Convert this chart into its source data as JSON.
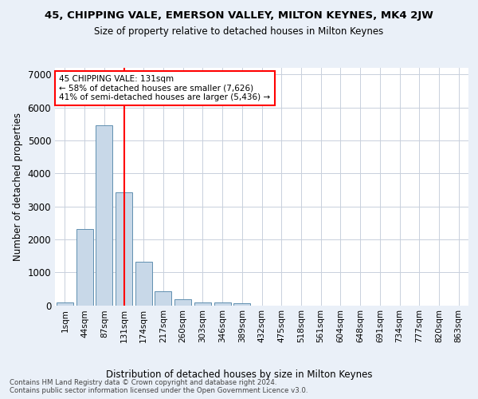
{
  "title": "45, CHIPPING VALE, EMERSON VALLEY, MILTON KEYNES, MK4 2JW",
  "subtitle": "Size of property relative to detached houses in Milton Keynes",
  "xlabel": "Distribution of detached houses by size in Milton Keynes",
  "ylabel": "Number of detached properties",
  "footer_line1": "Contains HM Land Registry data © Crown copyright and database right 2024.",
  "footer_line2": "Contains public sector information licensed under the Open Government Licence v3.0.",
  "bar_labels": [
    "1sqm",
    "44sqm",
    "87sqm",
    "131sqm",
    "174sqm",
    "217sqm",
    "260sqm",
    "303sqm",
    "346sqm",
    "389sqm",
    "432sqm",
    "475sqm",
    "518sqm",
    "561sqm",
    "604sqm",
    "648sqm",
    "691sqm",
    "734sqm",
    "777sqm",
    "820sqm",
    "863sqm"
  ],
  "bar_values": [
    80,
    2300,
    5450,
    3430,
    1310,
    430,
    170,
    90,
    75,
    60,
    0,
    0,
    0,
    0,
    0,
    0,
    0,
    0,
    0,
    0,
    0
  ],
  "bar_color": "#c8d8e8",
  "bar_edge_color": "#6090b0",
  "annotation_title": "45 CHIPPING VALE: 131sqm",
  "annotation_line1": "← 58% of detached houses are smaller (7,626)",
  "annotation_line2": "41% of semi-detached houses are larger (5,436) →",
  "annotation_box_color": "white",
  "annotation_box_edge_color": "red",
  "vline_color": "red",
  "vline_index": 3,
  "ylim": [
    0,
    7200
  ],
  "yticks": [
    0,
    1000,
    2000,
    3000,
    4000,
    5000,
    6000,
    7000
  ],
  "bg_color": "#eaf0f8",
  "plot_bg_color": "white",
  "grid_color": "#c8d0dc"
}
